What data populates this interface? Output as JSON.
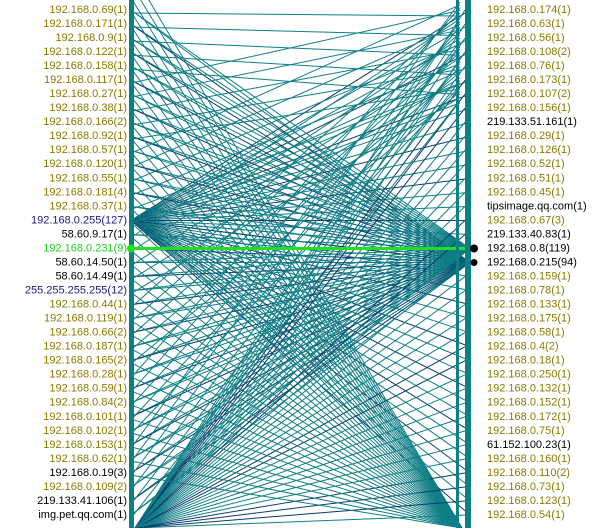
{
  "left_nodes": [
    {
      "label": "192.168.0.69(1)",
      "color": "#8a7a00"
    },
    {
      "label": "192.168.0.171(1)",
      "color": "#8a7a00"
    },
    {
      "label": "192.168.0.9(1)",
      "color": "#8a7a00"
    },
    {
      "label": "192.168.0.122(1)",
      "color": "#8a7a00"
    },
    {
      "label": "192.168.0.158(1)",
      "color": "#8a7a00"
    },
    {
      "label": "192.168.0.117(1)",
      "color": "#8a7a00"
    },
    {
      "label": "192.168.0.27(1)",
      "color": "#8a7a00"
    },
    {
      "label": "192.168.0.38(1)",
      "color": "#8a7a00"
    },
    {
      "label": "192.168.0.166(2)",
      "color": "#8a7a00"
    },
    {
      "label": "192.168.0.92(1)",
      "color": "#8a7a00"
    },
    {
      "label": "192.168.0.57(1)",
      "color": "#8a7a00"
    },
    {
      "label": "192.168.0.120(1)",
      "color": "#8a7a00"
    },
    {
      "label": "192.168.0.55(1)",
      "color": "#8a7a00"
    },
    {
      "label": "192.168.0.181(4)",
      "color": "#8a7a00"
    },
    {
      "label": "192.168.0.37(1)",
      "color": "#8a7a00"
    },
    {
      "label": "192.168.0.255(127)",
      "color": "#1a1a80"
    },
    {
      "label": "58.60.9.17(1)",
      "color": "#000000"
    },
    {
      "label": "192.168.0.231(9)",
      "color": "#22cc22"
    },
    {
      "label": "58.60.14.50(1)",
      "color": "#000000"
    },
    {
      "label": "58.60.14.49(1)",
      "color": "#000000"
    },
    {
      "label": "255.255.255.255(12)",
      "color": "#1a1a80"
    },
    {
      "label": "192.168.0.44(1)",
      "color": "#8a7a00"
    },
    {
      "label": "192.168.0.119(1)",
      "color": "#8a7a00"
    },
    {
      "label": "192.168.0.66(2)",
      "color": "#8a7a00"
    },
    {
      "label": "192.168.0.187(1)",
      "color": "#8a7a00"
    },
    {
      "label": "192.168.0.165(2)",
      "color": "#8a7a00"
    },
    {
      "label": "192.168.0.28(1)",
      "color": "#8a7a00"
    },
    {
      "label": "192.168.0.59(1)",
      "color": "#8a7a00"
    },
    {
      "label": "192.168.0.84(2)",
      "color": "#8a7a00"
    },
    {
      "label": "192.168.0.101(1)",
      "color": "#8a7a00"
    },
    {
      "label": "192.168.0.102(1)",
      "color": "#8a7a00"
    },
    {
      "label": "192.168.0.153(1)",
      "color": "#8a7a00"
    },
    {
      "label": "192.168.0.62(1)",
      "color": "#8a7a00"
    },
    {
      "label": "192.168.0.19(3)",
      "color": "#000000"
    },
    {
      "label": "192.168.0.109(2)",
      "color": "#8a7a00"
    },
    {
      "label": "219.133.41.106(1)",
      "color": "#000000"
    },
    {
      "label": "img.pet.qq.com(1)",
      "color": "#000000"
    }
  ],
  "right_nodes": [
    {
      "label": "192.168.0.174(1)",
      "color": "#8a7a00"
    },
    {
      "label": "192.168.0.63(1)",
      "color": "#8a7a00"
    },
    {
      "label": "192.168.0.56(1)",
      "color": "#8a7a00"
    },
    {
      "label": "192.168.0.108(2)",
      "color": "#8a7a00"
    },
    {
      "label": "192.168.0.76(1)",
      "color": "#8a7a00"
    },
    {
      "label": "192.168.0.173(1)",
      "color": "#8a7a00"
    },
    {
      "label": "192.168.0.107(2)",
      "color": "#8a7a00"
    },
    {
      "label": "192.168.0.156(1)",
      "color": "#8a7a00"
    },
    {
      "label": "219.133.51.161(1)",
      "color": "#000000"
    },
    {
      "label": "192.168.0.29(1)",
      "color": "#8a7a00"
    },
    {
      "label": "192.168.0.126(1)",
      "color": "#8a7a00"
    },
    {
      "label": "192.168.0.52(1)",
      "color": "#8a7a00"
    },
    {
      "label": "192.168.0.51(1)",
      "color": "#8a7a00"
    },
    {
      "label": "192.168.0.45(1)",
      "color": "#8a7a00"
    },
    {
      "label": "tipsimage.qq.com(1)",
      "color": "#000000"
    },
    {
      "label": "192.168.0.67(3)",
      "color": "#8a7a00"
    },
    {
      "label": "219.133.40.83(1)",
      "color": "#000000"
    },
    {
      "label": "192.168.0.8(119)",
      "color": "#000000"
    },
    {
      "label": "192.168.0.215(94)",
      "color": "#000000"
    },
    {
      "label": "192.168.0.159(1)",
      "color": "#8a7a00"
    },
    {
      "label": "192.168.0.78(1)",
      "color": "#8a7a00"
    },
    {
      "label": "192.168.0.133(1)",
      "color": "#8a7a00"
    },
    {
      "label": "192.168.0.175(1)",
      "color": "#8a7a00"
    },
    {
      "label": "192.168.0.58(1)",
      "color": "#8a7a00"
    },
    {
      "label": "192.168.0.4(2)",
      "color": "#8a7a00"
    },
    {
      "label": "192.168.0.18(1)",
      "color": "#8a7a00"
    },
    {
      "label": "192.168.0.250(1)",
      "color": "#8a7a00"
    },
    {
      "label": "192.168.0.132(1)",
      "color": "#8a7a00"
    },
    {
      "label": "192.168.0.152(1)",
      "color": "#8a7a00"
    },
    {
      "label": "192.168.0.172(1)",
      "color": "#8a7a00"
    },
    {
      "label": "192.168.0.75(1)",
      "color": "#8a7a00"
    },
    {
      "label": "61.152.100.23(1)",
      "color": "#000000"
    },
    {
      "label": "192.168.0.160(1)",
      "color": "#8a7a00"
    },
    {
      "label": "192.168.0.110(2)",
      "color": "#8a7a00"
    },
    {
      "label": "192.168.0.73(1)",
      "color": "#8a7a00"
    },
    {
      "label": "192.168.0.123(1)",
      "color": "#8a7a00"
    },
    {
      "label": "192.168.0.54(1)",
      "color": "#8a7a00"
    }
  ]
}
